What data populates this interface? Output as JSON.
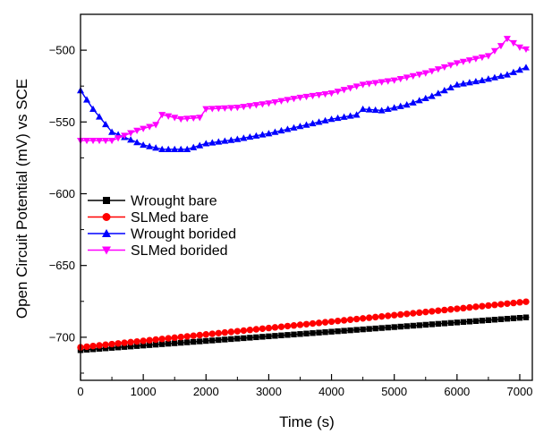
{
  "chart_data": {
    "type": "line",
    "title": "",
    "xlabel": "Time (s)",
    "ylabel": "Open Circuit Potential (mV) vs SCE",
    "xlim": [
      0,
      7200
    ],
    "ylim": [
      -730,
      -475
    ],
    "xticks": [
      0,
      1000,
      2000,
      3000,
      4000,
      5000,
      6000,
      7000
    ],
    "yticks": [
      -700,
      -650,
      -600,
      -550,
      -500
    ],
    "grid": false,
    "legend_position": "center-left",
    "series": [
      {
        "name": "Wrought bare",
        "color": "#000000",
        "marker": "square",
        "x": [
          0,
          7150
        ],
        "y": [
          -709,
          -686
        ]
      },
      {
        "name": "SLMed bare",
        "color": "#ff0000",
        "marker": "circle",
        "x": [
          0,
          7150
        ],
        "y": [
          -707,
          -675
        ]
      },
      {
        "name": "Wrought borided",
        "color": "#0000ff",
        "marker": "triangle-up",
        "x": [
          0,
          200,
          500,
          1000,
          1300,
          1700,
          2000,
          2500,
          3000,
          3500,
          4000,
          4400,
          4500,
          4800,
          5200,
          5600,
          6000,
          6400,
          6800,
          7100
        ],
        "y": [
          -528,
          -541,
          -557,
          -566,
          -569,
          -569,
          -565,
          -562,
          -558,
          -553,
          -548,
          -545,
          -541,
          -542,
          -538,
          -532,
          -524,
          -521,
          -517,
          -512
        ]
      },
      {
        "name": "SLMed borided",
        "color": "#ff00ff",
        "marker": "triangle-down",
        "x": [
          0,
          500,
          900,
          1200,
          1300,
          1600,
          1900,
          2000,
          2500,
          3000,
          3500,
          4000,
          4500,
          5000,
          5500,
          6000,
          6500,
          6700,
          6800,
          7000,
          7150
        ],
        "y": [
          -563,
          -563,
          -556,
          -552,
          -545,
          -548,
          -547,
          -541,
          -540,
          -537,
          -533,
          -530,
          -524,
          -521,
          -516,
          -509,
          -504,
          -497,
          -492,
          -498,
          -500
        ]
      }
    ]
  }
}
